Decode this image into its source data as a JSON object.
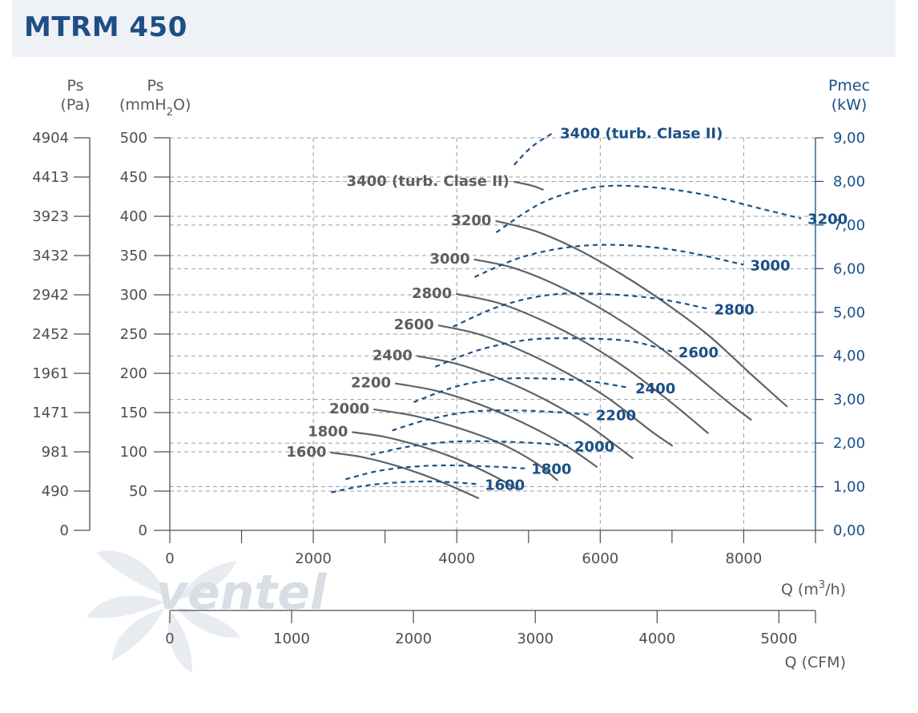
{
  "header": {
    "title": "MTRM 450"
  },
  "watermark": {
    "brand": "ventel"
  },
  "chart_data": {
    "type": "line",
    "title": "MTRM 450",
    "axes": {
      "y_pa": {
        "label_line1": "Ps",
        "label_line2": "(Pa)",
        "ticks": [
          "4904",
          "4413",
          "3923",
          "3432",
          "2942",
          "2452",
          "1961",
          "1471",
          "981",
          "490",
          "0"
        ]
      },
      "y_mmh2o": {
        "label_line1": "Ps",
        "label_line2a": "(mmH",
        "label_sub": "2",
        "label_line2b": "O)",
        "ylim": [
          0,
          500
        ],
        "ticks": [
          "500",
          "450",
          "400",
          "350",
          "300",
          "250",
          "200",
          "150",
          "100",
          "50",
          "0"
        ]
      },
      "y_kw": {
        "label_line1": "Pmec",
        "label_line2": "(kW)",
        "ylim": [
          0,
          9
        ],
        "ticks": [
          "9,00",
          "8,00",
          "7,00",
          "6,00",
          "5,00",
          "4,00",
          "3,00",
          "2,00",
          "1,00",
          "0,00"
        ]
      },
      "x_m3h": {
        "label_a": "Q (m",
        "label_sup": "3",
        "label_b": "/h)",
        "xlim": [
          0,
          9000
        ],
        "ticks": [
          "0",
          "2000",
          "4000",
          "6000",
          "8000"
        ]
      },
      "x_cfm": {
        "label": "Q (CFM)",
        "xlim": [
          0,
          5300
        ],
        "ticks": [
          "0",
          "1000",
          "2000",
          "3000",
          "4000",
          "5000"
        ]
      }
    },
    "grid": true,
    "pressure_series": [
      {
        "name": "1600",
        "x": [
          2250,
          2700,
          3200,
          3700,
          4300
        ],
        "y": [
          99,
          93,
          81,
          65,
          41
        ]
      },
      {
        "name": "1800",
        "x": [
          2550,
          3000,
          3500,
          4000,
          4500,
          4850
        ],
        "y": [
          125,
          119,
          107,
          91,
          70,
          52
        ]
      },
      {
        "name": "2000",
        "x": [
          2850,
          3400,
          4000,
          4600,
          5100,
          5400
        ],
        "y": [
          154,
          146,
          131,
          111,
          86,
          64
        ]
      },
      {
        "name": "2200",
        "x": [
          3150,
          3700,
          4300,
          4900,
          5500,
          5950
        ],
        "y": [
          187,
          178,
          161,
          138,
          109,
          81
        ]
      },
      {
        "name": "2400",
        "x": [
          3450,
          4000,
          4600,
          5200,
          5800,
          6450
        ],
        "y": [
          222,
          212,
          193,
          168,
          136,
          92
        ]
      },
      {
        "name": "2600",
        "x": [
          3750,
          4300,
          4900,
          5500,
          6100,
          6700,
          7000
        ],
        "y": [
          261,
          250,
          229,
          202,
          169,
          127,
          108
        ]
      },
      {
        "name": "2800",
        "x": [
          4000,
          4600,
          5200,
          5800,
          6400,
          7000,
          7500
        ],
        "y": [
          301,
          289,
          267,
          239,
          204,
          162,
          124
        ]
      },
      {
        "name": "3000",
        "x": [
          4250,
          4800,
          5400,
          6000,
          6600,
          7200,
          7800,
          8100
        ],
        "y": [
          345,
          334,
          312,
          283,
          248,
          207,
          162,
          141
        ]
      },
      {
        "name": "3200",
        "x": [
          4550,
          5100,
          5700,
          6300,
          6900,
          7500,
          8100,
          8600
        ],
        "y": [
          394,
          381,
          357,
          326,
          290,
          249,
          199,
          158
        ]
      },
      {
        "name": "3400 (turb. Clase II)",
        "x": [
          4800,
          5050,
          5200
        ],
        "y": [
          444,
          439,
          434
        ]
      }
    ],
    "power_series": [
      {
        "name": "1600",
        "x": [
          2250,
          2700,
          3200,
          3700,
          4300
        ],
        "y": [
          0.87,
          1.02,
          1.1,
          1.12,
          1.06
        ]
      },
      {
        "name": "1800",
        "x": [
          2450,
          2900,
          3400,
          3900,
          4500,
          4950
        ],
        "y": [
          1.17,
          1.36,
          1.46,
          1.49,
          1.46,
          1.42
        ]
      },
      {
        "name": "2000",
        "x": [
          2800,
          3300,
          3900,
          4500,
          5100,
          5550
        ],
        "y": [
          1.73,
          1.91,
          2.03,
          2.04,
          2.0,
          1.94
        ]
      },
      {
        "name": "2200",
        "x": [
          3100,
          3600,
          4200,
          4800,
          5400,
          5850
        ],
        "y": [
          2.29,
          2.54,
          2.72,
          2.75,
          2.71,
          2.65
        ]
      },
      {
        "name": "2400",
        "x": [
          3400,
          4000,
          4600,
          5200,
          5800,
          6400
        ],
        "y": [
          2.94,
          3.3,
          3.47,
          3.48,
          3.43,
          3.27
        ]
      },
      {
        "name": "2600",
        "x": [
          3700,
          4300,
          5000,
          5700,
          6400,
          7000
        ],
        "y": [
          3.75,
          4.13,
          4.37,
          4.4,
          4.34,
          4.1
        ]
      },
      {
        "name": "2800",
        "x": [
          3950,
          4600,
          5300,
          6000,
          6800,
          7500
        ],
        "y": [
          4.67,
          5.14,
          5.4,
          5.42,
          5.31,
          5.08
        ]
      },
      {
        "name": "3000",
        "x": [
          4250,
          4900,
          5600,
          6300,
          7100,
          8000
        ],
        "y": [
          5.81,
          6.26,
          6.5,
          6.54,
          6.41,
          6.09
        ]
      },
      {
        "name": "3200",
        "x": [
          4550,
          5200,
          5900,
          6600,
          7400,
          8300,
          8800
        ],
        "y": [
          6.83,
          7.52,
          7.86,
          7.88,
          7.71,
          7.35,
          7.15
        ]
      },
      {
        "name": "3400 (turb. Clase II)",
        "x": [
          4800,
          5050,
          5350
        ],
        "y": [
          8.38,
          8.8,
          9.12
        ]
      }
    ]
  }
}
